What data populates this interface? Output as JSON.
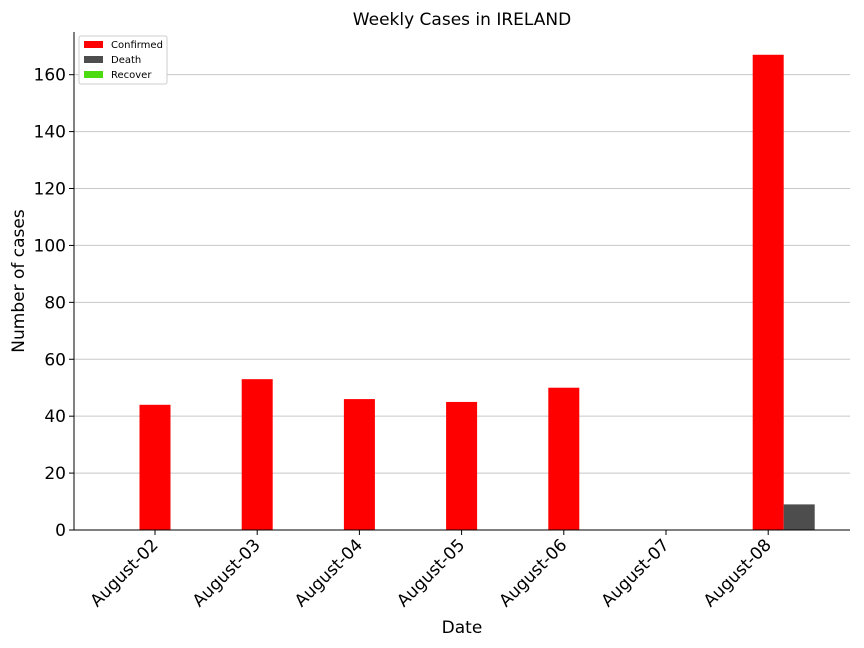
{
  "chart_data": {
    "type": "bar",
    "title": "Weekly Cases in IRELAND",
    "xlabel": "Date",
    "ylabel": "Number of cases",
    "categories": [
      "August-02",
      "August-03",
      "August-04",
      "August-05",
      "August-06",
      "August-07",
      "August-08"
    ],
    "series": [
      {
        "name": "Confirmed",
        "color": "#ff0000",
        "values": [
          44,
          53,
          46,
          45,
          50,
          0,
          167
        ]
      },
      {
        "name": "Death",
        "color": "#4d4d4d",
        "values": [
          0,
          0,
          0,
          0,
          0,
          0,
          9
        ]
      },
      {
        "name": "Recover",
        "color": "#4cdb10",
        "values": [
          0,
          0,
          0,
          0,
          0,
          0,
          0
        ]
      }
    ],
    "ylim": [
      0,
      175
    ],
    "yticks": [
      0,
      20,
      40,
      60,
      80,
      100,
      120,
      140,
      160
    ],
    "grid": "y",
    "legend_position": "top-left"
  }
}
